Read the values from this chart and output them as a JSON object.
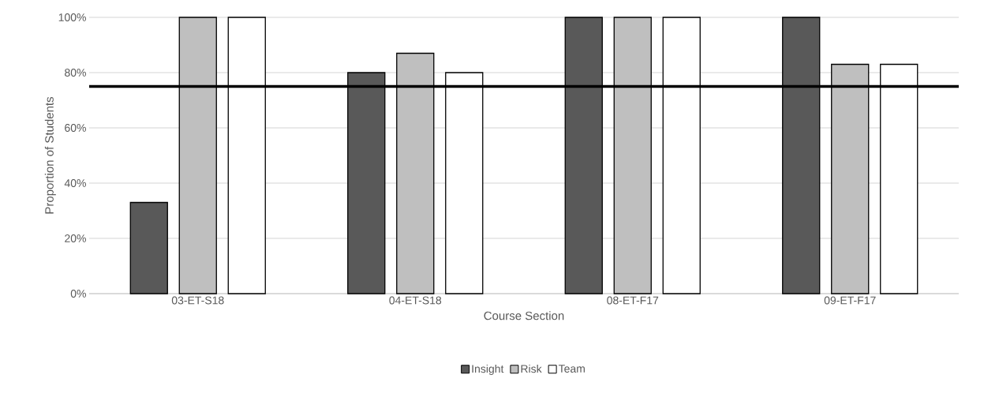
{
  "chart_data": {
    "type": "bar",
    "xlabel": "Course Section",
    "ylabel": "Proportion of Students",
    "categories": [
      "03-ET-S18",
      "04-ET-S18",
      "08-ET-F17",
      "09-ET-F17"
    ],
    "series": [
      {
        "name": "Insight",
        "color": "#595959",
        "values": [
          33,
          80,
          100,
          100
        ]
      },
      {
        "name": "Risk",
        "color": "#bfbfbf",
        "values": [
          100,
          87,
          100,
          83
        ]
      },
      {
        "name": "Team",
        "color": "#ffffff",
        "values": [
          100,
          80,
          100,
          83
        ]
      }
    ],
    "ylim": [
      0,
      100
    ],
    "yticks": [
      {
        "value": 0,
        "label": "0%"
      },
      {
        "value": 20,
        "label": "20%"
      },
      {
        "value": 40,
        "label": "40%"
      },
      {
        "value": 60,
        "label": "60%"
      },
      {
        "value": 80,
        "label": "80%"
      },
      {
        "value": 100,
        "label": "100%"
      }
    ],
    "ref_lines": [
      {
        "axis": "y",
        "value": 75,
        "color": "#000000"
      }
    ],
    "grid": "y",
    "legend": "bottom"
  }
}
